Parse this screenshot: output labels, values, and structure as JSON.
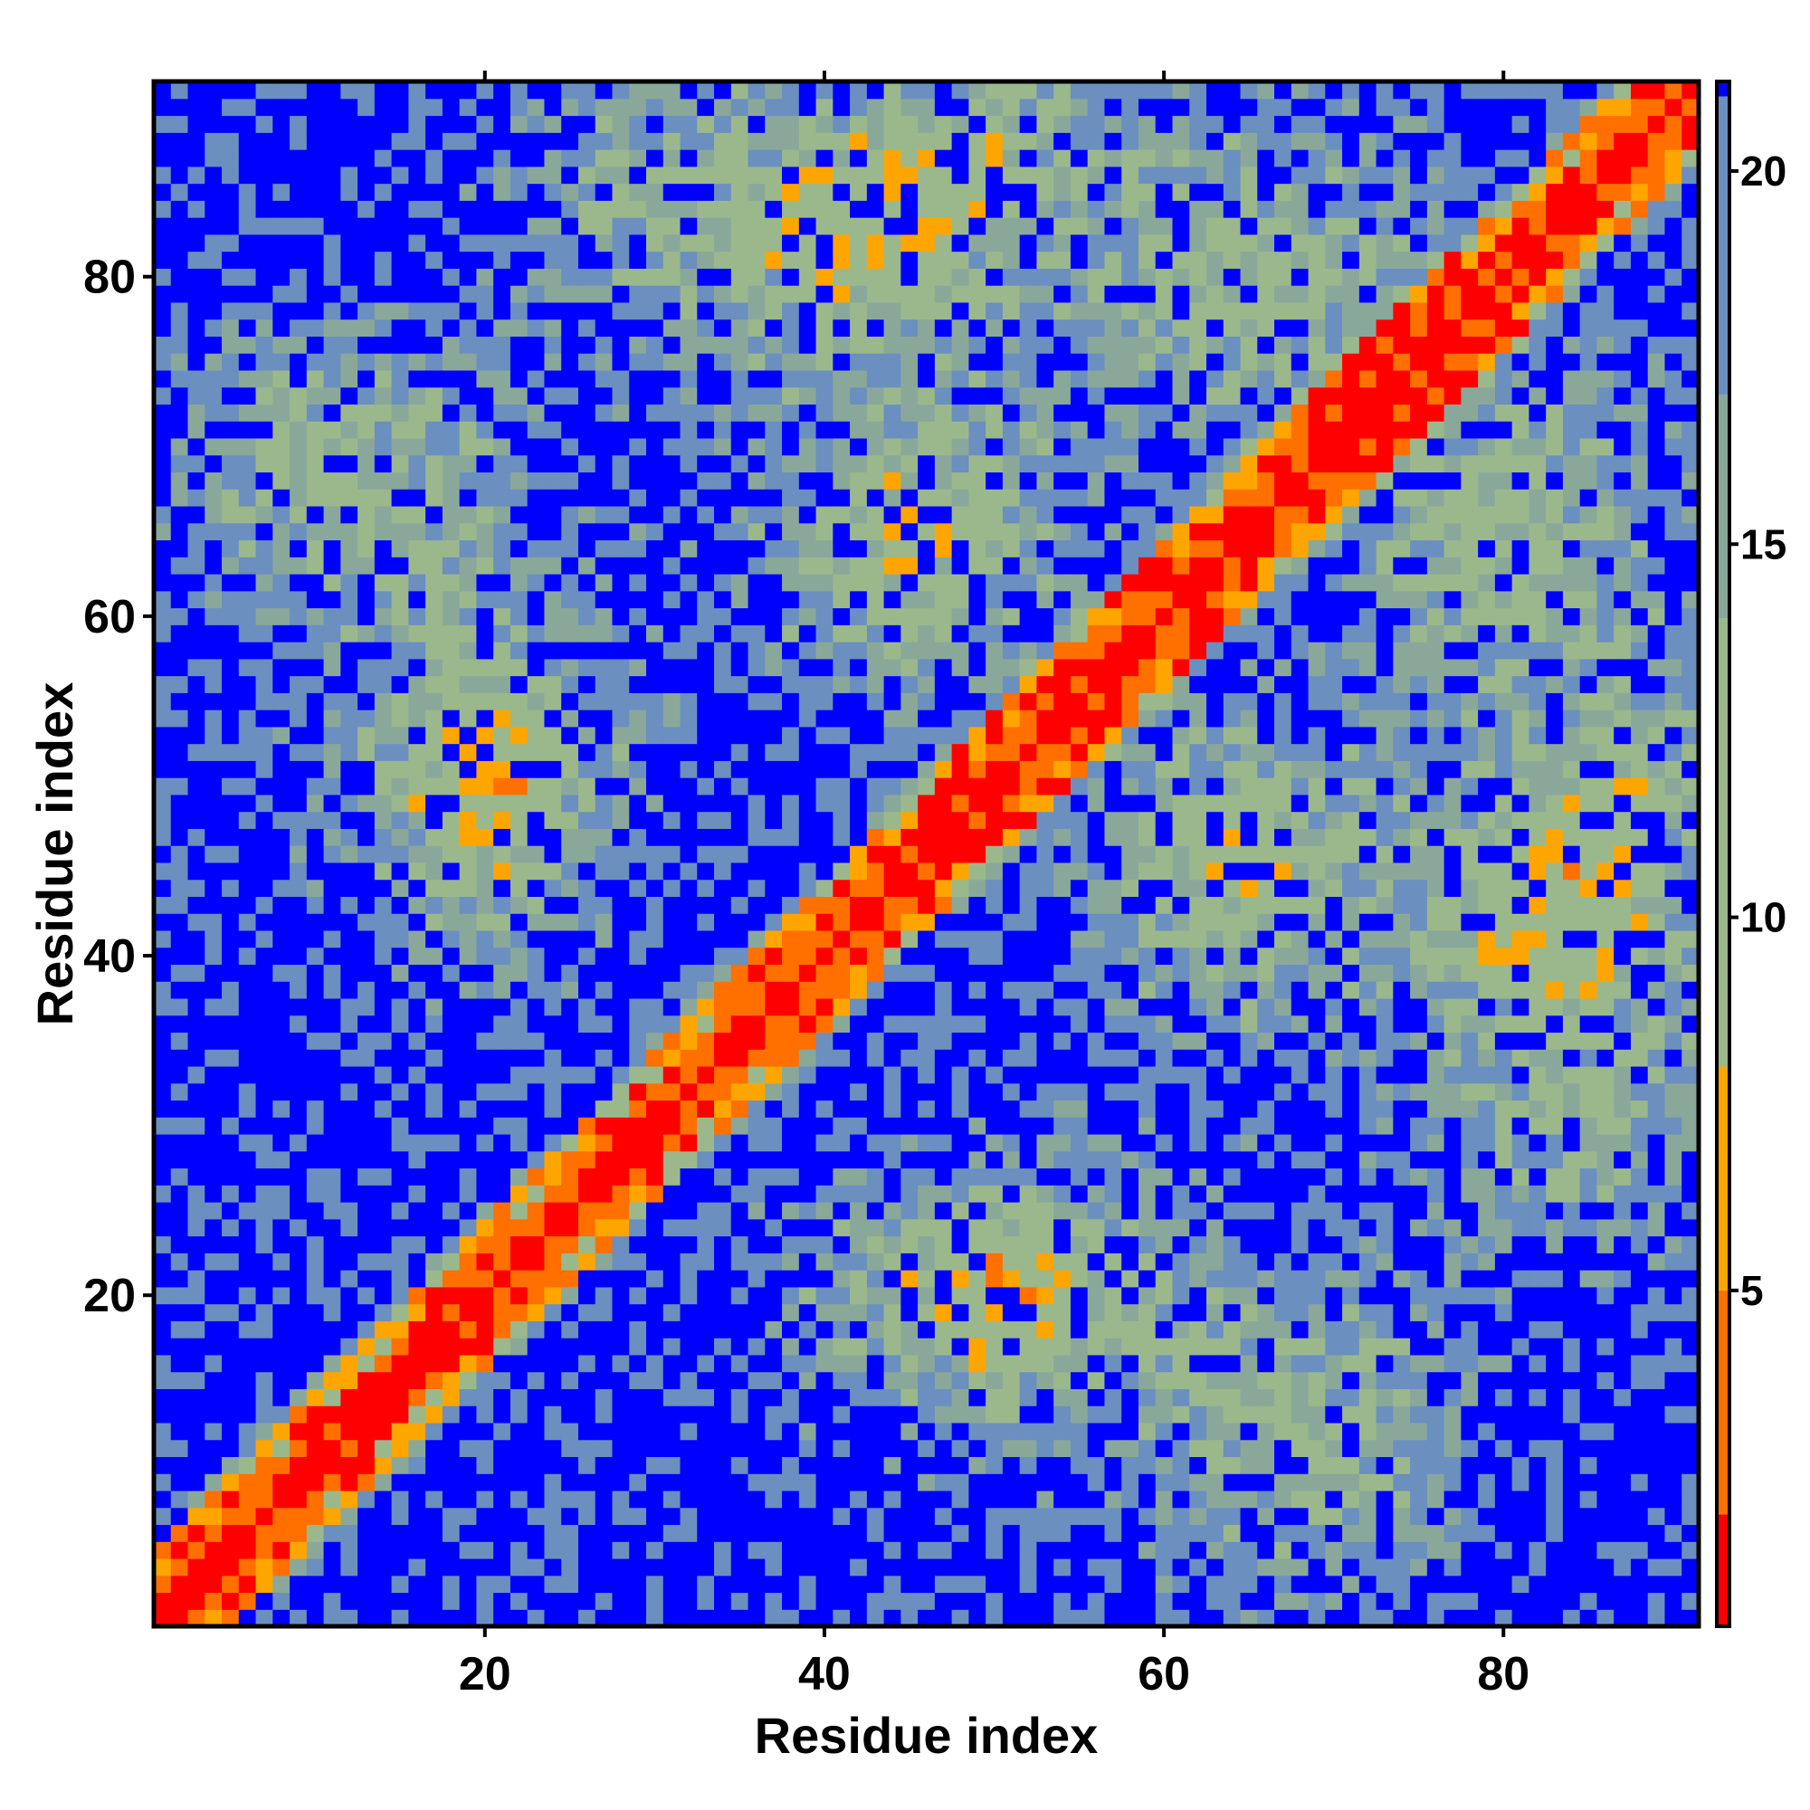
{
  "chart_data": {
    "type": "heatmap",
    "title": "",
    "xlabel": "Residue index",
    "ylabel": "Residue index",
    "n_residues": 91,
    "xlim": [
      0.5,
      91.5
    ],
    "ylim": [
      0.5,
      91.5
    ],
    "x_ticks": [
      20,
      40,
      60,
      80
    ],
    "y_ticks": [
      20,
      40,
      60,
      80
    ],
    "colorbar": {
      "range": [
        0.5,
        21.2
      ],
      "ticks": [
        5,
        10,
        15,
        20
      ],
      "colors": {
        "contact": "#ff0000",
        "near": "#ff7000",
        "near2": "#ffa500",
        "mid": "#9bb88c",
        "mid2": "#8aa89a",
        "far": "#6b8fbf",
        "very_far": "#0000ff"
      },
      "breaks": [
        2,
        5,
        8,
        14,
        17,
        21
      ]
    },
    "grid": false,
    "legend": "right colorbar",
    "description_of_values": "pairwise distance map, symmetric; diagonal ~0, off-diagonal values up to ~21+"
  }
}
